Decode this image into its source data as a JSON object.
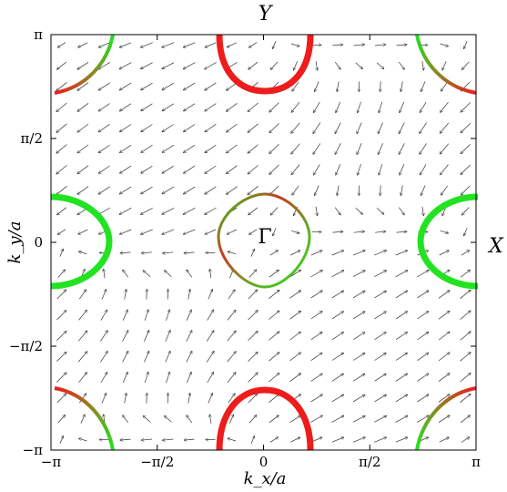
{
  "axes": {
    "xlabel": "k_x/a",
    "ylabel": "k_y/a",
    "x_range": [
      -3.14159,
      3.14159
    ],
    "y_range": [
      -3.14159,
      3.14159
    ],
    "x_ticks": [
      {
        "value": -3.14159,
        "label": "−π"
      },
      {
        "value": -1.5708,
        "label": "−π/2"
      },
      {
        "value": 0,
        "label": "0"
      },
      {
        "value": 1.5708,
        "label": "π/2"
      },
      {
        "value": 3.14159,
        "label": "π"
      }
    ],
    "y_ticks": [
      {
        "value": -3.14159,
        "label": "−π"
      },
      {
        "value": -1.5708,
        "label": "−π/2"
      },
      {
        "value": 0,
        "label": "0"
      },
      {
        "value": 1.5708,
        "label": "π/2"
      },
      {
        "value": 3.14159,
        "label": "π"
      }
    ]
  },
  "points": {
    "top": "Y",
    "right": "X",
    "center": "Γ"
  },
  "colors": {
    "green": "#22e322",
    "red": "#ee1c1c",
    "arrows": "#333333",
    "frame": "#000000"
  },
  "vector_field": {
    "grid_count": 20,
    "description_of_marks": "in-plane spin texture arrows"
  }
}
